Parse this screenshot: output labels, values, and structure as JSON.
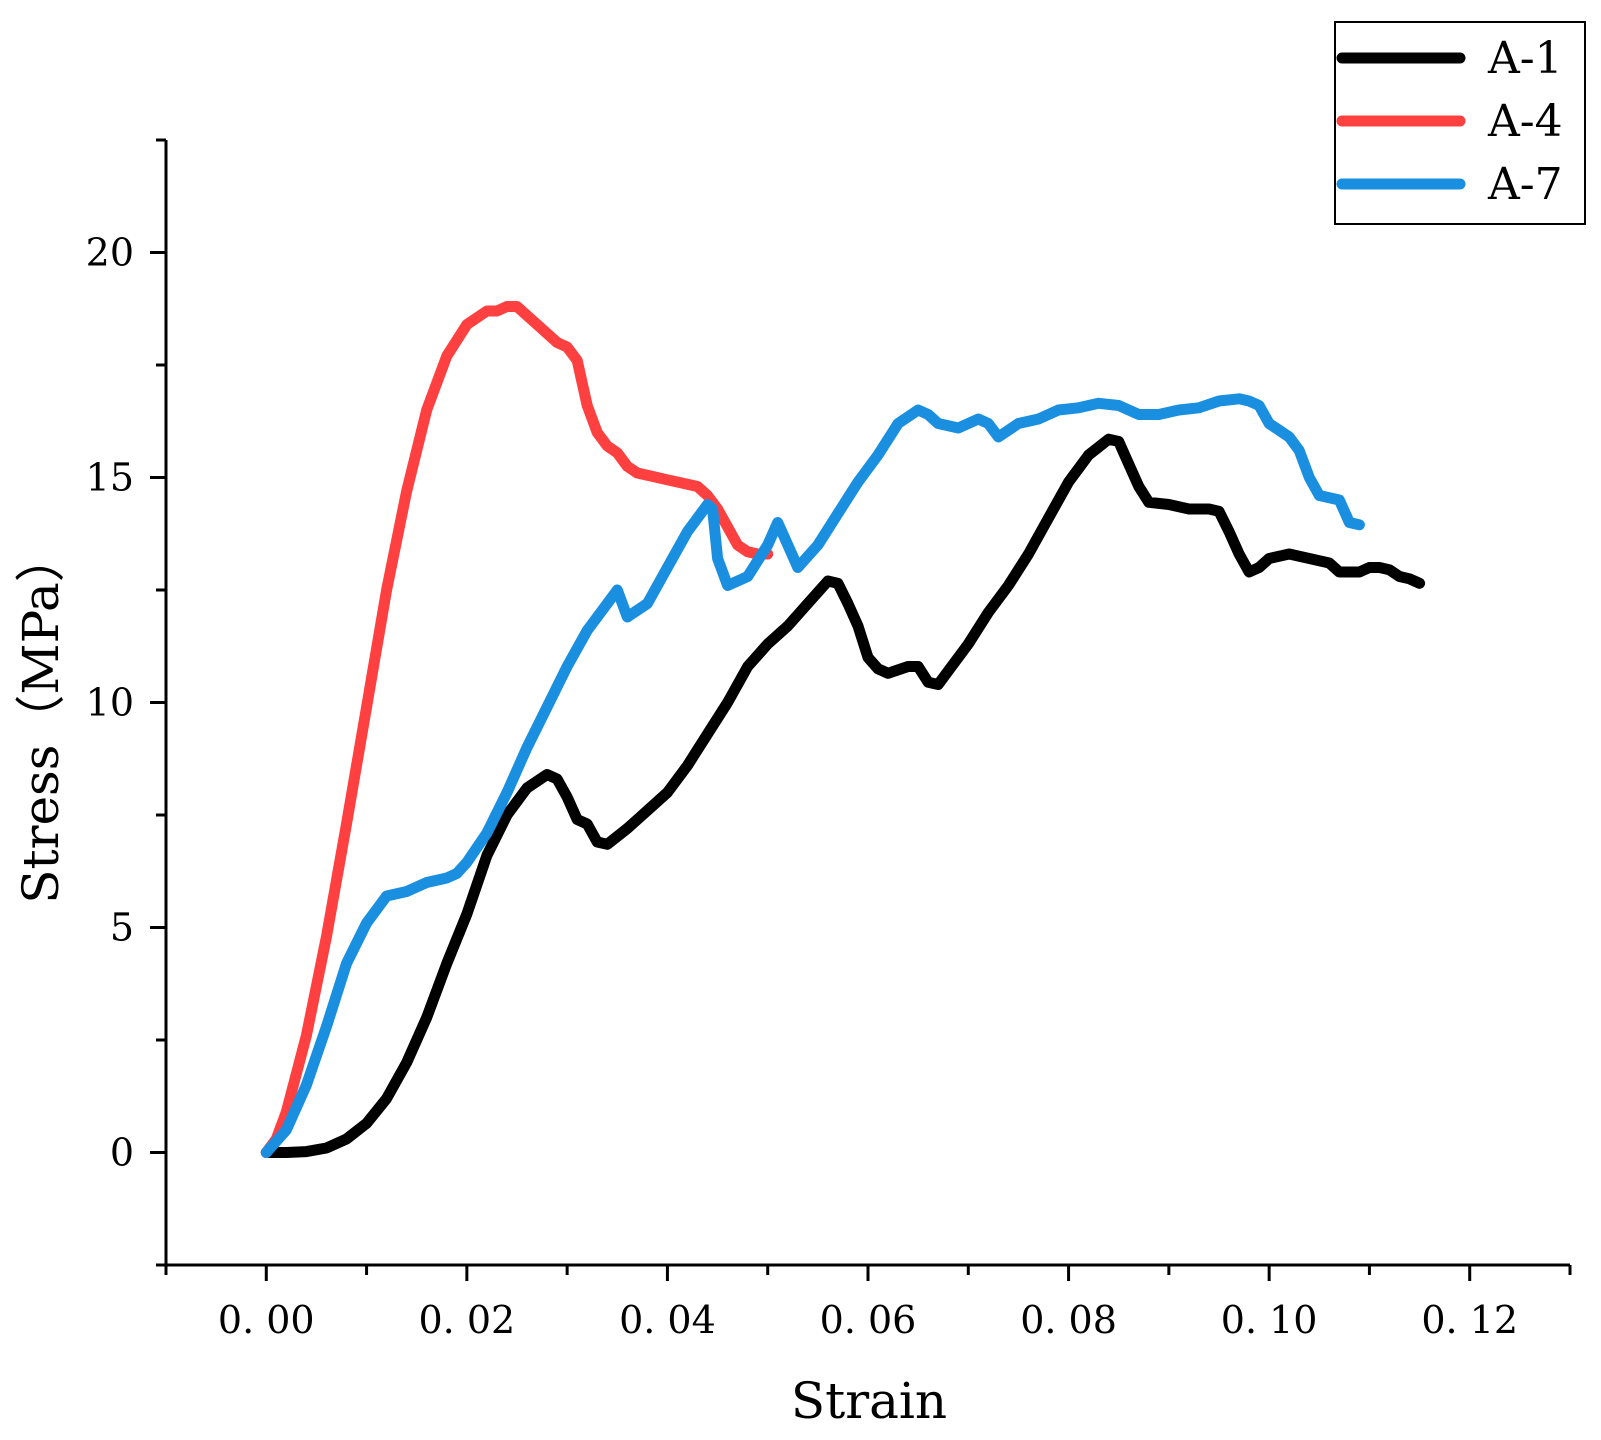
{
  "chart_data": {
    "type": "line",
    "title": "",
    "xlabel": "Strain",
    "ylabel": "Stress（MPa）",
    "xlim": [
      -0.01,
      0.13
    ],
    "ylim": [
      -2.5,
      22.5
    ],
    "x_ticks": [
      0.0,
      0.02,
      0.04,
      0.06,
      0.08,
      0.1,
      0.12
    ],
    "x_tick_labels": [
      "0. 00",
      "0. 02",
      "0. 04",
      "0. 06",
      "0. 08",
      "0. 10",
      "0. 12"
    ],
    "y_ticks": [
      0,
      5,
      10,
      15,
      20
    ],
    "y_tick_labels": [
      "0",
      "5",
      "10",
      "15",
      "20"
    ],
    "legend_position": "top-right",
    "series": [
      {
        "name": "A-1",
        "color": "#000000",
        "points": [
          [
            0,
            0
          ],
          [
            0.002,
            0
          ],
          [
            0.004,
            0.02
          ],
          [
            0.006,
            0.1
          ],
          [
            0.008,
            0.3
          ],
          [
            0.01,
            0.65
          ],
          [
            0.012,
            1.2
          ],
          [
            0.014,
            2.0
          ],
          [
            0.016,
            3.0
          ],
          [
            0.018,
            4.2
          ],
          [
            0.02,
            5.3
          ],
          [
            0.022,
            6.6
          ],
          [
            0.024,
            7.5
          ],
          [
            0.026,
            8.1
          ],
          [
            0.028,
            8.4
          ],
          [
            0.029,
            8.3
          ],
          [
            0.03,
            7.9
          ],
          [
            0.031,
            7.4
          ],
          [
            0.032,
            7.3
          ],
          [
            0.033,
            6.9
          ],
          [
            0.034,
            6.85
          ],
          [
            0.036,
            7.2
          ],
          [
            0.038,
            7.6
          ],
          [
            0.04,
            8.0
          ],
          [
            0.042,
            8.6
          ],
          [
            0.044,
            9.3
          ],
          [
            0.046,
            10.0
          ],
          [
            0.048,
            10.8
          ],
          [
            0.05,
            11.3
          ],
          [
            0.052,
            11.7
          ],
          [
            0.054,
            12.2
          ],
          [
            0.056,
            12.7
          ],
          [
            0.057,
            12.65
          ],
          [
            0.058,
            12.2
          ],
          [
            0.059,
            11.7
          ],
          [
            0.06,
            11.0
          ],
          [
            0.061,
            10.75
          ],
          [
            0.062,
            10.65
          ],
          [
            0.064,
            10.8
          ],
          [
            0.065,
            10.8
          ],
          [
            0.066,
            10.45
          ],
          [
            0.067,
            10.4
          ],
          [
            0.068,
            10.7
          ],
          [
            0.07,
            11.3
          ],
          [
            0.072,
            12.0
          ],
          [
            0.074,
            12.6
          ],
          [
            0.076,
            13.3
          ],
          [
            0.078,
            14.1
          ],
          [
            0.08,
            14.9
          ],
          [
            0.082,
            15.5
          ],
          [
            0.084,
            15.85
          ],
          [
            0.085,
            15.8
          ],
          [
            0.086,
            15.3
          ],
          [
            0.087,
            14.8
          ],
          [
            0.088,
            14.45
          ],
          [
            0.09,
            14.4
          ],
          [
            0.092,
            14.3
          ],
          [
            0.094,
            14.3
          ],
          [
            0.095,
            14.25
          ],
          [
            0.096,
            13.8
          ],
          [
            0.097,
            13.3
          ],
          [
            0.098,
            12.9
          ],
          [
            0.099,
            13.0
          ],
          [
            0.1,
            13.2
          ],
          [
            0.102,
            13.3
          ],
          [
            0.104,
            13.2
          ],
          [
            0.106,
            13.1
          ],
          [
            0.107,
            12.9
          ],
          [
            0.109,
            12.9
          ],
          [
            0.11,
            13.0
          ],
          [
            0.111,
            13.0
          ],
          [
            0.112,
            12.95
          ],
          [
            0.113,
            12.8
          ],
          [
            0.114,
            12.75
          ],
          [
            0.115,
            12.65
          ]
        ]
      },
      {
        "name": "A-4",
        "color": "#ff4040",
        "points": [
          [
            0,
            0
          ],
          [
            0.001,
            0.3
          ],
          [
            0.002,
            0.9
          ],
          [
            0.004,
            2.6
          ],
          [
            0.006,
            4.8
          ],
          [
            0.008,
            7.3
          ],
          [
            0.01,
            9.9
          ],
          [
            0.012,
            12.5
          ],
          [
            0.014,
            14.7
          ],
          [
            0.016,
            16.5
          ],
          [
            0.018,
            17.7
          ],
          [
            0.02,
            18.4
          ],
          [
            0.022,
            18.7
          ],
          [
            0.023,
            18.7
          ],
          [
            0.024,
            18.8
          ],
          [
            0.025,
            18.8
          ],
          [
            0.026,
            18.6
          ],
          [
            0.027,
            18.4
          ],
          [
            0.028,
            18.2
          ],
          [
            0.029,
            18.0
          ],
          [
            0.03,
            17.9
          ],
          [
            0.031,
            17.6
          ],
          [
            0.032,
            16.6
          ],
          [
            0.033,
            16.0
          ],
          [
            0.034,
            15.7
          ],
          [
            0.035,
            15.55
          ],
          [
            0.036,
            15.25
          ],
          [
            0.037,
            15.1
          ],
          [
            0.038,
            15.05
          ],
          [
            0.04,
            14.95
          ],
          [
            0.042,
            14.85
          ],
          [
            0.043,
            14.8
          ],
          [
            0.044,
            14.6
          ],
          [
            0.045,
            14.3
          ],
          [
            0.046,
            13.9
          ],
          [
            0.047,
            13.5
          ],
          [
            0.048,
            13.35
          ],
          [
            0.049,
            13.3
          ],
          [
            0.05,
            13.3
          ]
        ]
      },
      {
        "name": "A-7",
        "color": "#1a8fe0",
        "points": [
          [
            0,
            0
          ],
          [
            0.002,
            0.5
          ],
          [
            0.004,
            1.5
          ],
          [
            0.006,
            2.8
          ],
          [
            0.008,
            4.2
          ],
          [
            0.01,
            5.1
          ],
          [
            0.012,
            5.7
          ],
          [
            0.014,
            5.8
          ],
          [
            0.016,
            6.0
          ],
          [
            0.018,
            6.1
          ],
          [
            0.019,
            6.2
          ],
          [
            0.02,
            6.45
          ],
          [
            0.022,
            7.1
          ],
          [
            0.024,
            8.0
          ],
          [
            0.026,
            9.0
          ],
          [
            0.028,
            9.9
          ],
          [
            0.03,
            10.8
          ],
          [
            0.032,
            11.6
          ],
          [
            0.034,
            12.2
          ],
          [
            0.035,
            12.5
          ],
          [
            0.0355,
            12.2
          ],
          [
            0.036,
            11.9
          ],
          [
            0.038,
            12.2
          ],
          [
            0.04,
            13.0
          ],
          [
            0.042,
            13.8
          ],
          [
            0.044,
            14.4
          ],
          [
            0.0445,
            14.3
          ],
          [
            0.045,
            13.2
          ],
          [
            0.046,
            12.6
          ],
          [
            0.048,
            12.8
          ],
          [
            0.05,
            13.5
          ],
          [
            0.051,
            14.0
          ],
          [
            0.052,
            13.5
          ],
          [
            0.053,
            13.0
          ],
          [
            0.055,
            13.5
          ],
          [
            0.057,
            14.2
          ],
          [
            0.059,
            14.9
          ],
          [
            0.061,
            15.5
          ],
          [
            0.063,
            16.2
          ],
          [
            0.065,
            16.5
          ],
          [
            0.066,
            16.4
          ],
          [
            0.067,
            16.2
          ],
          [
            0.069,
            16.1
          ],
          [
            0.071,
            16.3
          ],
          [
            0.072,
            16.2
          ],
          [
            0.073,
            15.9
          ],
          [
            0.075,
            16.2
          ],
          [
            0.077,
            16.3
          ],
          [
            0.079,
            16.5
          ],
          [
            0.081,
            16.55
          ],
          [
            0.083,
            16.65
          ],
          [
            0.085,
            16.6
          ],
          [
            0.087,
            16.4
          ],
          [
            0.089,
            16.4
          ],
          [
            0.091,
            16.5
          ],
          [
            0.093,
            16.55
          ],
          [
            0.095,
            16.7
          ],
          [
            0.097,
            16.75
          ],
          [
            0.098,
            16.7
          ],
          [
            0.099,
            16.6
          ],
          [
            0.1,
            16.2
          ],
          [
            0.102,
            15.9
          ],
          [
            0.103,
            15.6
          ],
          [
            0.104,
            15.0
          ],
          [
            0.105,
            14.6
          ],
          [
            0.107,
            14.5
          ],
          [
            0.108,
            14.0
          ],
          [
            0.109,
            13.95
          ]
        ]
      }
    ]
  }
}
